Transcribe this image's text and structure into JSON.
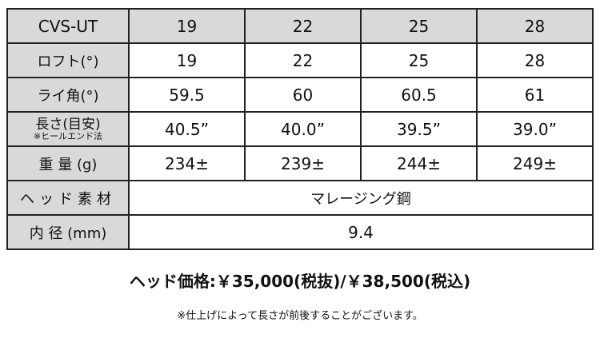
{
  "table": {
    "model": "CVS-UT",
    "columns": [
      "19",
      "22",
      "25",
      "28"
    ],
    "rows": [
      {
        "label": "ロフト(°)",
        "values": [
          "19",
          "22",
          "25",
          "28"
        ]
      },
      {
        "label": "ライ角(°)",
        "values": [
          "59.5",
          "60",
          "60.5",
          "61"
        ]
      },
      {
        "label": "長さ(目安)",
        "sublabel": "※ヒールエンド法",
        "values": [
          "40.5”",
          "40.0”",
          "39.5”",
          "39.0”"
        ]
      },
      {
        "label": "重 量 (g)",
        "values": [
          "234±",
          "239±",
          "244±",
          "249±"
        ]
      },
      {
        "label": "ヘッド素材",
        "value": "マレージング鋼"
      },
      {
        "label": "内 径 (mm)",
        "value": "9.4"
      }
    ]
  },
  "price": "ヘッド価格:￥35,000(税抜)/￥38,500(税込)",
  "note": "※仕上げによって長さが前後することがございます。",
  "colors": {
    "header_bg": "#d9d9d9",
    "border": "#222222"
  }
}
